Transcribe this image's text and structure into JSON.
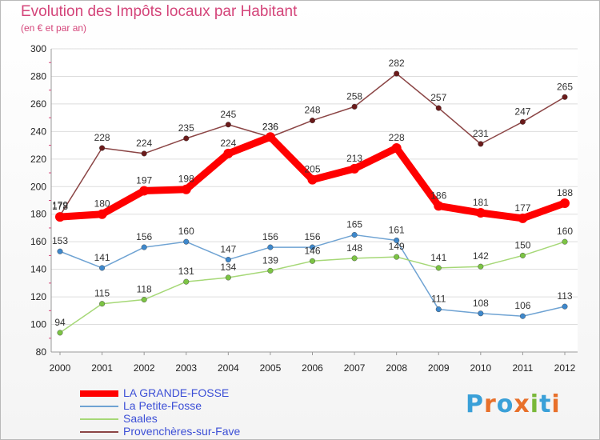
{
  "title": "Evolution des Impôts locaux par Habitant",
  "subtitle": "(en € et par an)",
  "logo": {
    "text": "Proxiti",
    "letter_colors": [
      "#3aa0d8",
      "#e8702a",
      "#3aa0d8",
      "#e8702a",
      "#79b839",
      "#3aa0d8",
      "#e8702a"
    ]
  },
  "chart_data": {
    "type": "line",
    "x": [
      "2000",
      "2001",
      "2002",
      "2003",
      "2004",
      "2005",
      "2006",
      "2007",
      "2008",
      "2009",
      "2010",
      "2011",
      "2012"
    ],
    "ylim": [
      80,
      300
    ],
    "yticks": [
      "80",
      "100",
      "120",
      "140",
      "160",
      "180",
      "200",
      "220",
      "240",
      "260",
      "280",
      "300"
    ],
    "grid": true,
    "legend_position": "bottom",
    "series": [
      {
        "name": "LA GRANDE-FOSSE",
        "color": "#ff0000",
        "emphasis": true,
        "values": [
          178,
          180,
          197,
          198,
          224,
          236,
          205,
          213,
          228,
          186,
          181,
          177,
          188
        ],
        "labels": [
          "178",
          "180",
          "197",
          "198",
          "224",
          "236",
          "205",
          "213",
          "228",
          "186",
          "181",
          "177",
          "188"
        ]
      },
      {
        "name": "La Petite-Fosse",
        "color": "#6fa3d3",
        "marker": "#3e88cc",
        "values": [
          153,
          141,
          156,
          160,
          147,
          156,
          156,
          165,
          161,
          111,
          108,
          106,
          113
        ],
        "labels": [
          "153",
          "141",
          "156",
          "160",
          "147",
          "156",
          "156",
          "165",
          "161",
          "111",
          "108",
          "106",
          "113"
        ]
      },
      {
        "name": "Saales",
        "color": "#a6d877",
        "marker": "#7cc444",
        "values": [
          94,
          115,
          118,
          131,
          134,
          139,
          146,
          148,
          149,
          141,
          142,
          150,
          160
        ],
        "labels": [
          "94",
          "115",
          "118",
          "131",
          "134",
          "139",
          "146",
          "148",
          "149",
          "141",
          "142",
          "150",
          "160"
        ]
      },
      {
        "name": "Provenchères-sur-Fave",
        "color": "#8b4545",
        "marker": "#6b1b1b",
        "values": [
          179,
          228,
          224,
          235,
          245,
          236,
          248,
          258,
          282,
          257,
          231,
          247,
          265
        ],
        "labels": [
          "179",
          "228",
          "224",
          "235",
          "245",
          "236",
          "248",
          "258",
          "282",
          "257",
          "231",
          "247",
          "265"
        ]
      }
    ]
  }
}
